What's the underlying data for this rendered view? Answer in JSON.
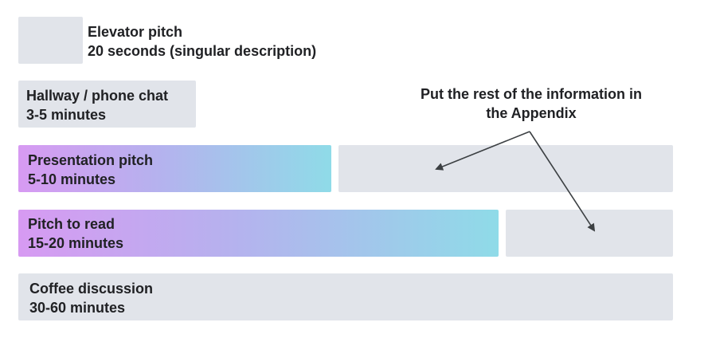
{
  "tiers": [
    {
      "title": "Elevator pitch",
      "duration": "20 seconds (singular description)"
    },
    {
      "title": "Hallway / phone chat",
      "duration": "3-5 minutes"
    },
    {
      "title": "Presentation pitch",
      "duration": "5-10 minutes"
    },
    {
      "title": "Pitch to read",
      "duration": "15-20 minutes"
    },
    {
      "title": "Coffee discussion",
      "duration": "30-60 minutes"
    }
  ],
  "annotation": {
    "line1": "Put the rest of the information in",
    "line2": "the Appendix"
  },
  "colors": {
    "gray_box": "#e1e4ea",
    "gradient_start": "#d79af2",
    "gradient_end": "#8fdbe8",
    "arrow": "#3c4043"
  }
}
